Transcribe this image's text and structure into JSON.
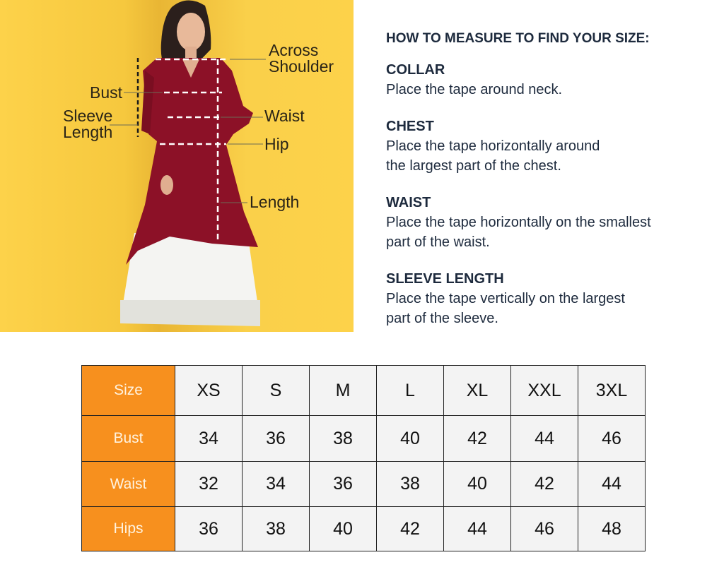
{
  "diagram": {
    "labels": {
      "across_shoulder_1": "Across",
      "across_shoulder_2": "Shoulder",
      "bust": "Bust",
      "sleeve_length_1": "Sleeve",
      "sleeve_length_2": "Length",
      "waist": "Waist",
      "hip": "Hip",
      "length": "Length"
    },
    "colors": {
      "background": "#fdd24a",
      "kurta": "#8c1127",
      "palazzo": "#f4f4f2"
    }
  },
  "guide": {
    "title": "HOW TO MEASURE TO FIND YOUR SIZE:",
    "sections": [
      {
        "heading": "COLLAR",
        "text": "Place the tape around neck."
      },
      {
        "heading": "CHEST",
        "text": "Place the tape horizontally around\nthe largest part of the chest."
      },
      {
        "heading": "WAIST",
        "text": "Place the tape horizontally on the smallest\npart of the waist."
      },
      {
        "heading": "SLEEVE LENGTH",
        "text": "Place the tape vertically on the largest\npart of the sleeve."
      }
    ]
  },
  "size_table": {
    "header_color": "#f7901e",
    "rows": [
      {
        "label": "Size",
        "values": [
          "XS",
          "S",
          "M",
          "L",
          "XL",
          "XXL",
          "3XL"
        ]
      },
      {
        "label": "Bust",
        "values": [
          "34",
          "36",
          "38",
          "40",
          "42",
          "44",
          "46"
        ]
      },
      {
        "label": "Waist",
        "values": [
          "32",
          "34",
          "36",
          "38",
          "40",
          "42",
          "44"
        ]
      },
      {
        "label": "Hips",
        "values": [
          "36",
          "38",
          "40",
          "42",
          "44",
          "46",
          "48"
        ]
      }
    ]
  }
}
